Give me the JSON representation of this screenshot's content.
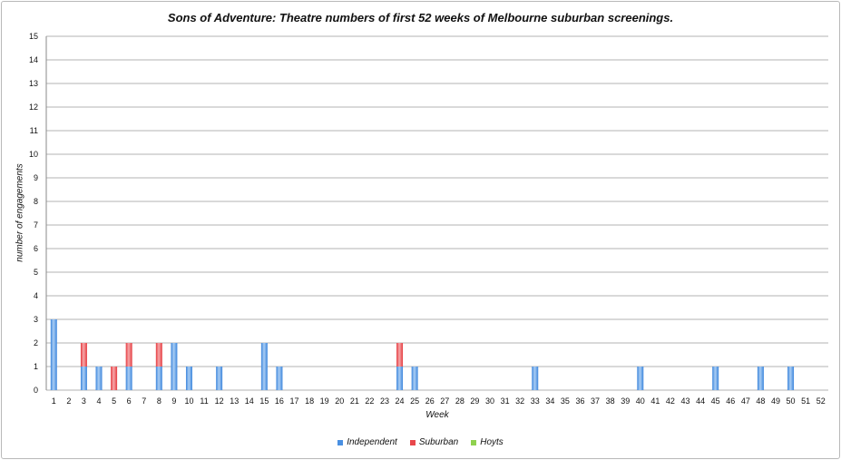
{
  "chart_data": {
    "type": "bar",
    "stacked": true,
    "title": "Sons of Adventure: Theatre numbers of first 52 weeks of Melbourne suburban screenings.",
    "xlabel": "Week",
    "ylabel": "number of engagements",
    "ylim": [
      0,
      15
    ],
    "y_ticks": [
      0,
      1,
      2,
      3,
      4,
      5,
      6,
      7,
      8,
      9,
      10,
      11,
      12,
      13,
      14,
      15
    ],
    "categories": [
      "1",
      "2",
      "3",
      "4",
      "5",
      "6",
      "7",
      "8",
      "9",
      "10",
      "11",
      "12",
      "13",
      "14",
      "15",
      "16",
      "17",
      "18",
      "19",
      "20",
      "21",
      "22",
      "23",
      "24",
      "25",
      "26",
      "27",
      "28",
      "29",
      "30",
      "31",
      "32",
      "33",
      "34",
      "35",
      "36",
      "37",
      "38",
      "39",
      "40",
      "41",
      "42",
      "43",
      "44",
      "45",
      "46",
      "47",
      "48",
      "49",
      "50",
      "51",
      "52"
    ],
    "series": [
      {
        "name": "Independent",
        "color": "#4a90e2",
        "values": [
          3,
          0,
          1,
          1,
          0,
          1,
          0,
          1,
          2,
          1,
          0,
          1,
          0,
          0,
          2,
          1,
          0,
          0,
          0,
          0,
          0,
          0,
          0,
          1,
          1,
          0,
          0,
          0,
          0,
          0,
          0,
          0,
          1,
          0,
          0,
          0,
          0,
          0,
          0,
          1,
          0,
          0,
          0,
          0,
          1,
          0,
          0,
          1,
          0,
          1,
          0,
          0
        ]
      },
      {
        "name": "Suburban",
        "color": "#e8474b",
        "values": [
          0,
          0,
          1,
          0,
          1,
          1,
          0,
          1,
          0,
          0,
          0,
          0,
          0,
          0,
          0,
          0,
          0,
          0,
          0,
          0,
          0,
          0,
          0,
          1,
          0,
          0,
          0,
          0,
          0,
          0,
          0,
          0,
          0,
          0,
          0,
          0,
          0,
          0,
          0,
          0,
          0,
          0,
          0,
          0,
          0,
          0,
          0,
          0,
          0,
          0,
          0,
          0
        ]
      },
      {
        "name": "Hoyts",
        "color": "#8fd14f",
        "values": [
          0,
          0,
          0,
          0,
          0,
          0,
          0,
          0,
          0,
          0,
          0,
          0,
          0,
          0,
          0,
          0,
          0,
          0,
          0,
          0,
          0,
          0,
          0,
          0,
          0,
          0,
          0,
          0,
          0,
          0,
          0,
          0,
          0,
          0,
          0,
          0,
          0,
          0,
          0,
          0,
          0,
          0,
          0,
          0,
          0,
          0,
          0,
          0,
          0,
          0,
          0,
          0
        ]
      }
    ],
    "grid": true,
    "legend_position": "bottom"
  }
}
